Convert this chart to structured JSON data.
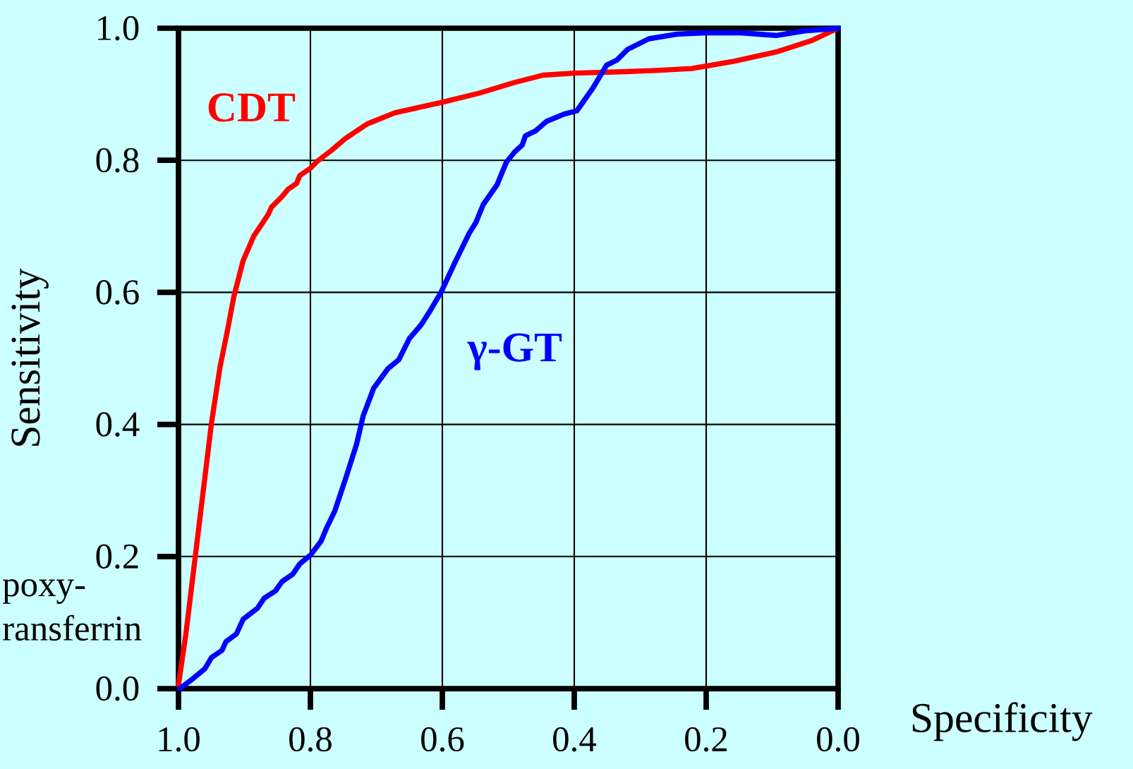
{
  "chart_data": {
    "type": "line",
    "xlabel": "Specificity",
    "ylabel": "Sensitivity",
    "xlim": [
      1.0,
      0.0
    ],
    "ylim": [
      0.0,
      1.0
    ],
    "xticks": [
      {
        "value": 1.0,
        "label": "1.0"
      },
      {
        "value": 0.8,
        "label": "0.8"
      },
      {
        "value": 0.6,
        "label": "0.6"
      },
      {
        "value": 0.4,
        "label": "0.4"
      },
      {
        "value": 0.2,
        "label": "0.2"
      },
      {
        "value": 0.0,
        "label": "0.0"
      }
    ],
    "yticks": [
      {
        "value": 0.0,
        "label": "0.0"
      },
      {
        "value": 0.2,
        "label": "0.2"
      },
      {
        "value": 0.4,
        "label": "0.4"
      },
      {
        "value": 0.6,
        "label": "0.6"
      },
      {
        "value": 0.8,
        "label": "0.8"
      },
      {
        "value": 1.0,
        "label": "1.0"
      }
    ],
    "grid": true,
    "marker": "none",
    "line_style": "solid",
    "annotations": [
      "poxy-",
      "ransferrin"
    ],
    "series": [
      {
        "name": "CDT",
        "color": "#ff0000",
        "x": [
          1.0,
          0.989,
          0.976,
          0.963,
          0.95,
          0.937,
          0.926,
          0.916,
          0.902,
          0.886,
          0.864,
          0.859,
          0.843,
          0.834,
          0.821,
          0.816,
          0.8,
          0.789,
          0.768,
          0.747,
          0.714,
          0.672,
          0.6,
          0.543,
          0.49,
          0.447,
          0.399,
          0.329,
          0.276,
          0.222,
          0.158,
          0.094,
          0.041,
          0.0
        ],
        "values": [
          0.006,
          0.081,
          0.188,
          0.295,
          0.402,
          0.487,
          0.541,
          0.594,
          0.648,
          0.685,
          0.718,
          0.729,
          0.745,
          0.756,
          0.765,
          0.777,
          0.788,
          0.799,
          0.815,
          0.833,
          0.855,
          0.872,
          0.888,
          0.902,
          0.918,
          0.929,
          0.932,
          0.934,
          0.936,
          0.939,
          0.95,
          0.964,
          0.981,
          1.0
        ]
      },
      {
        "name": "γ-GT",
        "color": "#0000ff",
        "x": [
          0.998,
          0.982,
          0.96,
          0.95,
          0.934,
          0.928,
          0.912,
          0.902,
          0.88,
          0.87,
          0.853,
          0.843,
          0.827,
          0.816,
          0.8,
          0.784,
          0.776,
          0.763,
          0.747,
          0.73,
          0.72,
          0.704,
          0.682,
          0.666,
          0.65,
          0.632,
          0.618,
          0.602,
          0.581,
          0.559,
          0.549,
          0.538,
          0.517,
          0.503,
          0.49,
          0.479,
          0.474,
          0.458,
          0.442,
          0.415,
          0.396,
          0.372,
          0.351,
          0.335,
          0.319,
          0.287,
          0.244,
          0.201,
          0.148,
          0.094,
          0.051,
          0.0
        ],
        "values": [
          0.0,
          0.012,
          0.03,
          0.047,
          0.058,
          0.071,
          0.083,
          0.105,
          0.122,
          0.137,
          0.148,
          0.162,
          0.173,
          0.189,
          0.202,
          0.223,
          0.242,
          0.269,
          0.317,
          0.37,
          0.413,
          0.455,
          0.485,
          0.498,
          0.53,
          0.551,
          0.573,
          0.6,
          0.645,
          0.69,
          0.706,
          0.733,
          0.763,
          0.797,
          0.813,
          0.823,
          0.837,
          0.845,
          0.859,
          0.87,
          0.875,
          0.909,
          0.944,
          0.952,
          0.968,
          0.984,
          0.991,
          0.993,
          0.993,
          0.989,
          0.996,
          1.0
        ]
      }
    ]
  }
}
